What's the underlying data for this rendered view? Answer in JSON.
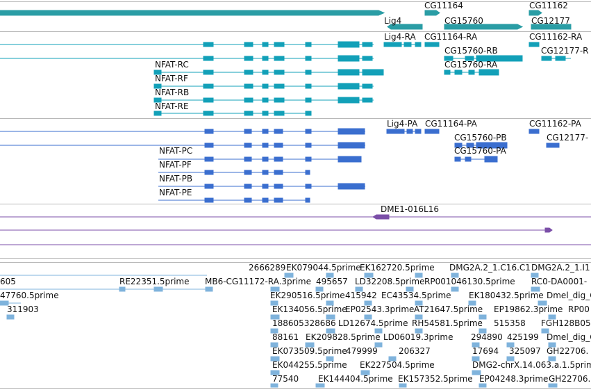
{
  "colors": {
    "gene": "#2a9da5",
    "transcript": "#12a0b8",
    "cds": "#3a6ecf",
    "clone": "#7b4fa8",
    "est": "#7fb3dc",
    "divider": "#b8b8b8",
    "text": "#111111"
  },
  "gene_track": {
    "labels": [
      "CG11164",
      "CG11162",
      "Lig4",
      "CG15760",
      "CG12177"
    ]
  },
  "transcript_track": {
    "labels": [
      "Lig4-RA",
      "CG11164-RA",
      "CG11162-RA",
      "CG15760-RB",
      "CG12177-R",
      "CG15760-RA",
      "NFAT-RC",
      "NFAT-RF",
      "NFAT-RB",
      "NFAT-RE"
    ]
  },
  "cds_track": {
    "labels": [
      "Lig4-PA",
      "CG11164-PA",
      "CG11162-PA",
      "CG15760-PB",
      "CG12177-",
      "CG15760-PA",
      "NFAT-PC",
      "NFAT-PF",
      "NFAT-PB",
      "NFAT-PE"
    ]
  },
  "clone_track": {
    "labels": [
      "DME1-016L16"
    ]
  },
  "est_track": {
    "labels": [
      "2666289",
      "EK079044.5prime",
      "EK162720.5prime",
      "DMG2A.2_1.C16.C1",
      "DMG2A.2_1.I1",
      "605",
      "RE22351.5prime",
      "MB6-CG11172-RA.3prime",
      "495657",
      "LD32208.5prime",
      "RP001046130.5prime",
      "RC0-DA0001-",
      "47760.5prime",
      "EK290516.5prime",
      "415942",
      "EC43534.5prime",
      "EK180432.5prime",
      "Dmel_dig_C",
      "311903",
      "EK134056.5prime",
      "EP02543.3prime",
      "AT21647.5prime",
      "EP19862.3prime",
      "RP00",
      "188605328686",
      "LD12674.5prime",
      "RH54581.5prime",
      "515358",
      "FGH128B05",
      "88161",
      "EK209828.5prime",
      "LD06019.3prime",
      "294890",
      "425199",
      "Dmel_dig_C",
      "EK073509.5prime",
      "479999",
      "206327",
      "17694",
      "325097",
      "GH22706.",
      "EK044255.5prime",
      "EK227504.5prime",
      "DMG2-chrX.14.063.a.1.5prime",
      "77540",
      "EK144404.5prime",
      "EK157352.5prime",
      "EP04248.3prime",
      "GH22706."
    ]
  }
}
